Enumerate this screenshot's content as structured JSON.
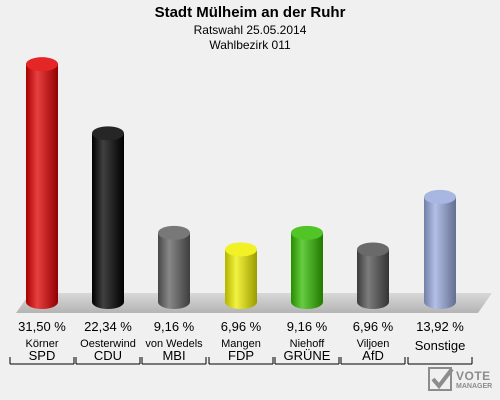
{
  "title": "Stadt Mülheim an der Ruhr",
  "subtitle1": "Ratswahl 25.05.2014",
  "subtitle2": "Wahlbezirk 011",
  "logo": {
    "line1": "VOTE",
    "line2": "MANAGER"
  },
  "chart_data": {
    "type": "bar",
    "categories": [
      "SPD",
      "CDU",
      "MBI",
      "FDP",
      "GRÜNE",
      "AfD",
      "Sonstige"
    ],
    "candidates": [
      "Körner",
      "Oesterwind",
      "von Wedels",
      "Mangen",
      "Niehoff",
      "Viljoen",
      ""
    ],
    "values": [
      31.5,
      22.34,
      9.16,
      6.96,
      9.16,
      6.96,
      13.92
    ],
    "value_labels": [
      "31,50 %",
      "22,34 %",
      "9,16 %",
      "6,96 %",
      "9,16 %",
      "6,96 %",
      "13,92 %"
    ],
    "colors": [
      "#e00000",
      "#000000",
      "#606060",
      "#eeee00",
      "#33bb00",
      "#505050",
      "#99aadd"
    ],
    "ylim": [
      0,
      33
    ],
    "grid": false,
    "legend": "none"
  }
}
